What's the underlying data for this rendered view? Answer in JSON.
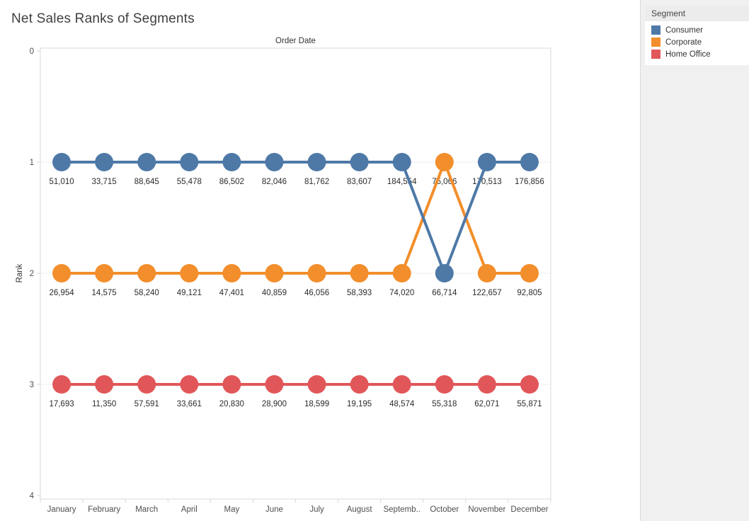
{
  "chart_data": {
    "type": "line",
    "variant": "bump-rank-chart",
    "title": "Net Sales Ranks of Segments",
    "x_axis_title": "Order Date",
    "ylabel": "Rank",
    "ylim": [
      0,
      4
    ],
    "y_axis_inverted": true,
    "y_ticks": [
      "0",
      "1",
      "2",
      "3",
      "4"
    ],
    "grid": "horizontal",
    "legend_title": "Segment",
    "legend_position": "top-right",
    "categories": [
      "January",
      "February",
      "March",
      "April",
      "May",
      "June",
      "July",
      "August",
      "September",
      "October",
      "November",
      "December"
    ],
    "x_tick_labels": [
      "January",
      "February",
      "March",
      "April",
      "May",
      "June",
      "July",
      "August",
      "Septemb..",
      "October",
      "November",
      "December"
    ],
    "series": [
      {
        "name": "Consumer",
        "color": "#4e79a7",
        "ranks": [
          1,
          1,
          1,
          1,
          1,
          1,
          1,
          1,
          1,
          2,
          1,
          1
        ],
        "values": [
          51010,
          33715,
          88645,
          55478,
          86502,
          82046,
          81762,
          83607,
          184554,
          66714,
          170513,
          176856
        ],
        "labels": [
          "51,010",
          "33,715",
          "88,645",
          "55,478",
          "86,502",
          "82,046",
          "81,762",
          "83,607",
          "184,554",
          "66,714",
          "170,513",
          "176,856"
        ]
      },
      {
        "name": "Corporate",
        "color": "#f28e2b",
        "ranks": [
          2,
          2,
          2,
          2,
          2,
          2,
          2,
          2,
          2,
          1,
          2,
          2
        ],
        "values": [
          26954,
          14575,
          58240,
          49121,
          47401,
          40859,
          46056,
          58393,
          74020,
          75066,
          122657,
          92805
        ],
        "labels": [
          "26,954",
          "14,575",
          "58,240",
          "49,121",
          "47,401",
          "40,859",
          "46,056",
          "58,393",
          "74,020",
          "75,066",
          "122,657",
          "92,805"
        ]
      },
      {
        "name": "Home Office",
        "color": "#e15759",
        "ranks": [
          3,
          3,
          3,
          3,
          3,
          3,
          3,
          3,
          3,
          3,
          3,
          3
        ],
        "values": [
          17693,
          11350,
          57591,
          33661,
          20830,
          28900,
          18599,
          19195,
          48574,
          55318,
          62071,
          55871
        ],
        "labels": [
          "17,693",
          "11,350",
          "57,591",
          "33,661",
          "20,830",
          "28,900",
          "18,599",
          "19,195",
          "48,574",
          "55,318",
          "62,071",
          "55,871"
        ]
      }
    ]
  },
  "colors": {
    "plot_border": "#d8d8d8",
    "gridline": "#ececec",
    "tick": "#d8d8d8",
    "axis_text": "#4f4f4f",
    "label_text": "#2b2b2b",
    "panel_bg": "#f0f0f0",
    "legend_header_bg": "#ececec"
  }
}
